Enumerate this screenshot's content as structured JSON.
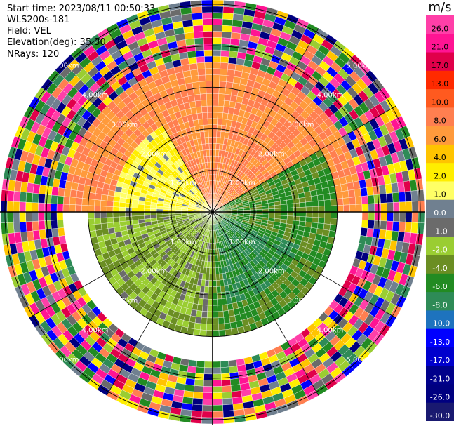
{
  "header": {
    "start_time": "Start time: 2023/08/11 00:50:33",
    "site": "WLS200s-181",
    "field": "Field: VEL",
    "elevation": "Elevation(deg): 35.30",
    "nrays": "NRays: 120"
  },
  "colorbar": {
    "unit": "m/s",
    "levels": [
      {
        "label": "26.0",
        "color": "#ff3fa8"
      },
      {
        "label": "21.0",
        "color": "#ff1493"
      },
      {
        "label": "17.0",
        "color": "#e0004a"
      },
      {
        "label": "13.0",
        "color": "#ff2a00"
      },
      {
        "label": "10.0",
        "color": "#ff5a1f"
      },
      {
        "label": "8.0",
        "color": "#ff7f50"
      },
      {
        "label": "6.0",
        "color": "#ff9a3c"
      },
      {
        "label": "4.0",
        "color": "#ffc400"
      },
      {
        "label": "2.0",
        "color": "#ffee00"
      },
      {
        "label": "1.0",
        "color": "#ffff66"
      },
      {
        "label": "0.0",
        "color": "#708090"
      },
      {
        "label": "-1.0",
        "color": "#6b6b6b"
      },
      {
        "label": "-2.0",
        "color": "#9acd32"
      },
      {
        "label": "-4.0",
        "color": "#6b8e23"
      },
      {
        "label": "-6.0",
        "color": "#228b22"
      },
      {
        "label": "-8.0",
        "color": "#2e8b57"
      },
      {
        "label": "-10.0",
        "color": "#1e73be"
      },
      {
        "label": "-13.0",
        "color": "#0000ff"
      },
      {
        "label": "-17.0",
        "color": "#0000cd"
      },
      {
        "label": "-21.0",
        "color": "#00008b"
      },
      {
        "label": "-26.0",
        "color": "#000080"
      },
      {
        "label": "-30.0",
        "color": "#191970"
      }
    ]
  },
  "chart_data": {
    "type": "heatmap",
    "projection": "polar",
    "field": "VEL",
    "unit": "m/s",
    "nrays": 120,
    "range_rings": [
      {
        "label": "1.00km",
        "radius_km": 1.0
      },
      {
        "label": "2.00km",
        "radius_km": 2.0
      },
      {
        "label": "3.00km",
        "radius_km": 3.0
      },
      {
        "label": "4.00km",
        "radius_km": 4.0
      },
      {
        "label": "5.00km",
        "radius_km": 5.0
      }
    ],
    "max_range_km": 5.1,
    "spoke_angles_deg": [
      0,
      30,
      60,
      90,
      120,
      150,
      180,
      210,
      240,
      270,
      300,
      330
    ],
    "sectors": [
      {
        "azimuth_from_deg": 270,
        "azimuth_to_deg": 90,
        "range_km": [
          0.0,
          3.6
        ],
        "velocity_ms": 8.0
      },
      {
        "azimuth_from_deg": 270,
        "azimuth_to_deg": 330,
        "range_km": [
          0.0,
          2.4
        ],
        "velocity_ms": 2.0
      },
      {
        "azimuth_from_deg": 60,
        "azimuth_to_deg": 180,
        "range_km": [
          0.0,
          3.0
        ],
        "velocity_ms": -4.0
      },
      {
        "azimuth_from_deg": 110,
        "azimuth_to_deg": 170,
        "range_km": [
          0.3,
          2.3
        ],
        "velocity_ms": -6.0
      },
      {
        "azimuth_from_deg": 180,
        "azimuth_to_deg": 270,
        "range_km": [
          0.0,
          3.0
        ],
        "velocity_ms": -2.0
      },
      {
        "azimuth_from_deg": 0,
        "azimuth_to_deg": 360,
        "range_km": [
          3.6,
          5.1
        ],
        "velocity_ms": "mixed"
      }
    ]
  }
}
